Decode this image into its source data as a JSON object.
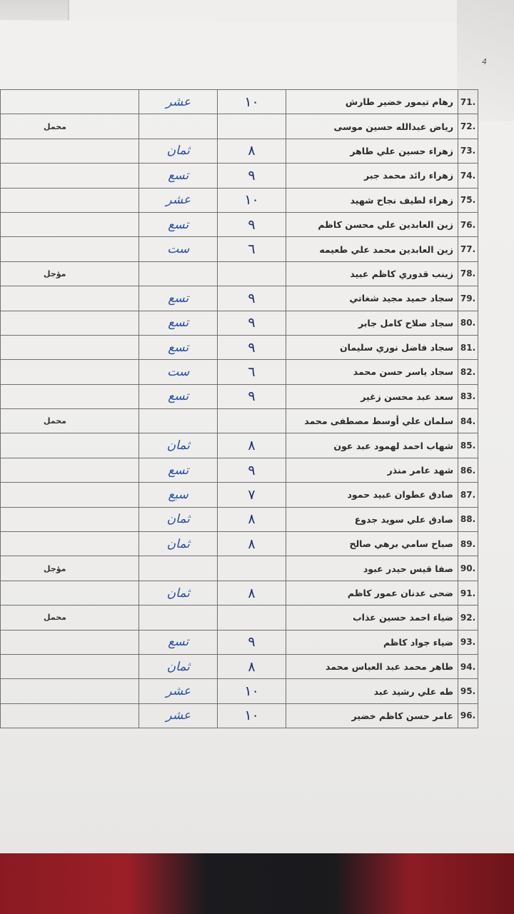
{
  "page_number": "4",
  "rows": [
    {
      "no": "71.",
      "name": "رهام تيمور خضير طارش",
      "digit": "١٠",
      "word": "عشر",
      "note": ""
    },
    {
      "no": "72.",
      "name": "رياض عبدالله حسين موسى",
      "digit": "",
      "word": "",
      "note": "محمل"
    },
    {
      "no": "73.",
      "name": "زهراء حسين علي طاهر",
      "digit": "٨",
      "word": "ثمان",
      "note": ""
    },
    {
      "no": "74.",
      "name": "زهراء رائد محمد جبر",
      "digit": "٩",
      "word": "تسع",
      "note": ""
    },
    {
      "no": "75.",
      "name": "زهراء لطيف نجاح شهيد",
      "digit": "١٠",
      "word": "عشر",
      "note": ""
    },
    {
      "no": "76.",
      "name": "زين العابدين علي محسن كاظم",
      "digit": "٩",
      "word": "تسع",
      "note": ""
    },
    {
      "no": "77.",
      "name": "زين العابدين محمد علي طعيمه",
      "digit": "٦",
      "word": "ست",
      "note": ""
    },
    {
      "no": "78.",
      "name": "زينب قدوري كاظم عبيد",
      "digit": "",
      "word": "",
      "note": "مؤجل"
    },
    {
      "no": "79.",
      "name": "سجاد حميد مجيد شغاتي",
      "digit": "٩",
      "word": "تسع",
      "note": ""
    },
    {
      "no": "80.",
      "name": "سجاد صلاح كامل جابر",
      "digit": "٩",
      "word": "تسع",
      "note": ""
    },
    {
      "no": "81.",
      "name": "سجاد فاضل نوري سليمان",
      "digit": "٩",
      "word": "تسع",
      "note": ""
    },
    {
      "no": "82.",
      "name": "سجاد ياسر حسن محمد",
      "digit": "٦",
      "word": "ست",
      "note": ""
    },
    {
      "no": "83.",
      "name": "سعد عبد محسن زغير",
      "digit": "٩",
      "word": "تسع",
      "note": ""
    },
    {
      "no": "84.",
      "name": "سلمان علي أوسط مصطفى محمد",
      "digit": "",
      "word": "",
      "note": "محمل"
    },
    {
      "no": "85.",
      "name": "شهاب احمد لهمود عبد عون",
      "digit": "٨",
      "word": "ثمان",
      "note": ""
    },
    {
      "no": "86.",
      "name": "شهد عامر منذر",
      "digit": "٩",
      "word": "تسع",
      "note": ""
    },
    {
      "no": "87.",
      "name": "صادق عطوان عبيد حمود",
      "digit": "٧",
      "word": "سبع",
      "note": ""
    },
    {
      "no": "88.",
      "name": "صادق علي سويد جدوع",
      "digit": "٨",
      "word": "ثمان",
      "note": ""
    },
    {
      "no": "89.",
      "name": "صباح سامي برهي صالح",
      "digit": "٨",
      "word": "ثمان",
      "note": ""
    },
    {
      "no": "90.",
      "name": "صفا قيس حيدر عبود",
      "digit": "",
      "word": "",
      "note": "مؤجل"
    },
    {
      "no": "91.",
      "name": "ضحى عدنان عمور كاظم",
      "digit": "٨",
      "word": "ثمان",
      "note": ""
    },
    {
      "no": "92.",
      "name": "ضياء احمد حسين عذاب",
      "digit": "",
      "word": "",
      "note": "محمل"
    },
    {
      "no": "93.",
      "name": "ضياء جواد كاظم",
      "digit": "٩",
      "word": "تسع",
      "note": ""
    },
    {
      "no": "94.",
      "name": "طاهر محمد عبد العباس محمد",
      "digit": "٨",
      "word": "ثمان",
      "note": ""
    },
    {
      "no": "95.",
      "name": "طه علي رشيد عبد",
      "digit": "١٠",
      "word": "عشر",
      "note": ""
    },
    {
      "no": "96.",
      "name": "عامر حسن كاظم خضير",
      "digit": "١٠",
      "word": "عشر",
      "note": ""
    }
  ]
}
